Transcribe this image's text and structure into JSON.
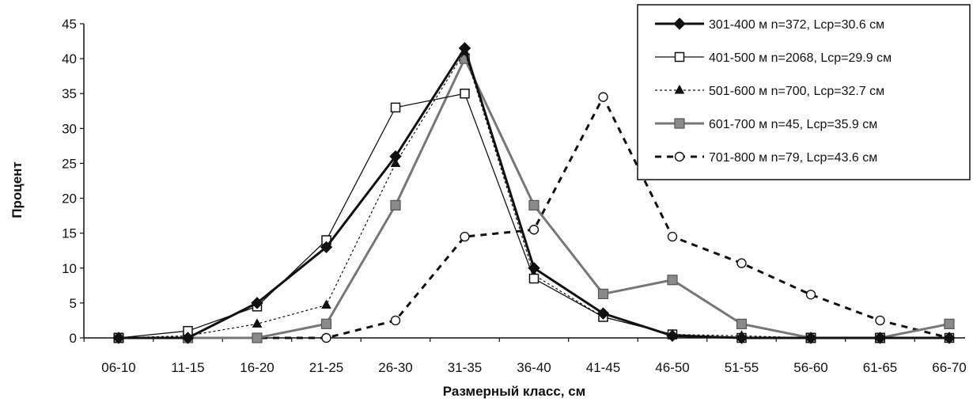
{
  "chart_data": {
    "type": "line",
    "title": "",
    "xlabel": "Размерный класс, см",
    "ylabel": "Процент",
    "categories": [
      "06-10",
      "11-15",
      "16-20",
      "21-25",
      "26-30",
      "31-35",
      "36-40",
      "41-45",
      "46-50",
      "51-55",
      "56-60",
      "61-65",
      "66-70"
    ],
    "ylim": [
      0,
      45
    ],
    "yticks": [
      0,
      5,
      10,
      15,
      20,
      25,
      30,
      35,
      40,
      45
    ],
    "grid": false,
    "legend_position": "top-right",
    "series": [
      {
        "name": "301-400 м  n=372, Lcp=30.6 см",
        "marker": "diamond",
        "line": "thick-solid",
        "color": "#111111",
        "values": [
          0,
          0,
          5,
          13,
          26,
          41.5,
          10,
          3.5,
          0.3,
          0,
          0,
          0,
          0
        ]
      },
      {
        "name": "401-500 м  n=2068, Lcp=29.9 см",
        "marker": "open-square",
        "line": "thin-solid",
        "color": "#111111",
        "values": [
          0,
          1,
          4.5,
          14,
          33,
          35,
          8.5,
          3,
          0.5,
          0,
          0,
          0,
          0
        ]
      },
      {
        "name": "501-600 м  n=700, Lcp=32.7 см",
        "marker": "triangle",
        "line": "thin-dashed",
        "color": "#111111",
        "values": [
          0,
          0.3,
          2,
          4.7,
          25,
          41,
          9,
          3,
          0.5,
          0.3,
          0,
          0,
          0
        ]
      },
      {
        "name": "601-700 м  n=45,  Lcp=35.9 см",
        "marker": "grey-square",
        "line": "grey-solid",
        "color": "#707070",
        "values": [
          0,
          0,
          0,
          2,
          19,
          40,
          19,
          6.3,
          8.3,
          2,
          0,
          0,
          2
        ]
      },
      {
        "name": "701-800 м  n=79,  Lcp=43.6 см",
        "marker": "open-circle",
        "line": "bold-dashed",
        "color": "#111111",
        "values": [
          0,
          0,
          0,
          0,
          2.5,
          14.5,
          15.5,
          34.5,
          14.5,
          10.7,
          6.2,
          2.5,
          0
        ]
      }
    ]
  }
}
